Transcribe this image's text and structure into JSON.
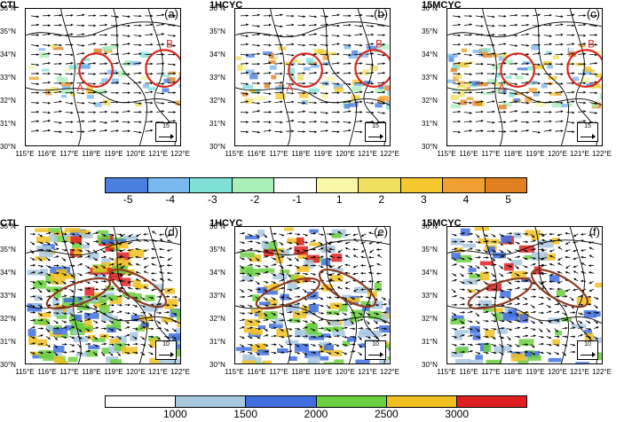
{
  "latitude_labels": [
    "36°N",
    "35°N",
    "34°N",
    "33°N",
    "32°N",
    "31°N",
    "30°N"
  ],
  "longitude_labels": [
    "115°E",
    "116°E",
    "117°E",
    "118°E",
    "119°E",
    "120°E",
    "121°E",
    "122°E"
  ],
  "top_row": [
    {
      "experiment": "CTL",
      "label": "(a)",
      "ref": "15",
      "markA": "A",
      "markB": "B"
    },
    {
      "experiment": "1HCYC",
      "label": "(b)",
      "ref": "15",
      "markA": "A",
      "markB": "B"
    },
    {
      "experiment": "15MCYC",
      "label": "(c)",
      "ref": "15",
      "markA": "A",
      "markB": "B"
    }
  ],
  "bottom_row": [
    {
      "experiment": "CTL",
      "label": "(d)",
      "ref": "10"
    },
    {
      "experiment": "1HCYC",
      "label": "(e)",
      "ref": "10"
    },
    {
      "experiment": "15MCYC",
      "label": "(f)",
      "ref": "10"
    }
  ],
  "colorbar_top": {
    "colors": [
      "#4a7fe0",
      "#7ab8f0",
      "#7fe0d8",
      "#a8f0b8",
      "#ffffff",
      "#f8f8a8",
      "#f0e060",
      "#f5c830",
      "#f0a030",
      "#e08020"
    ],
    "ticks": [
      "-5",
      "-4",
      "-3",
      "-2",
      "-1",
      "1",
      "2",
      "3",
      "4",
      "5"
    ]
  },
  "colorbar_bottom": {
    "colors": [
      "#ffffff",
      "#a8c8e0",
      "#3f6ee0",
      "#6ad040",
      "#f0c020",
      "#e02020"
    ],
    "ticks": [
      "1000",
      "1500",
      "2000",
      "2500",
      "3000"
    ]
  }
}
